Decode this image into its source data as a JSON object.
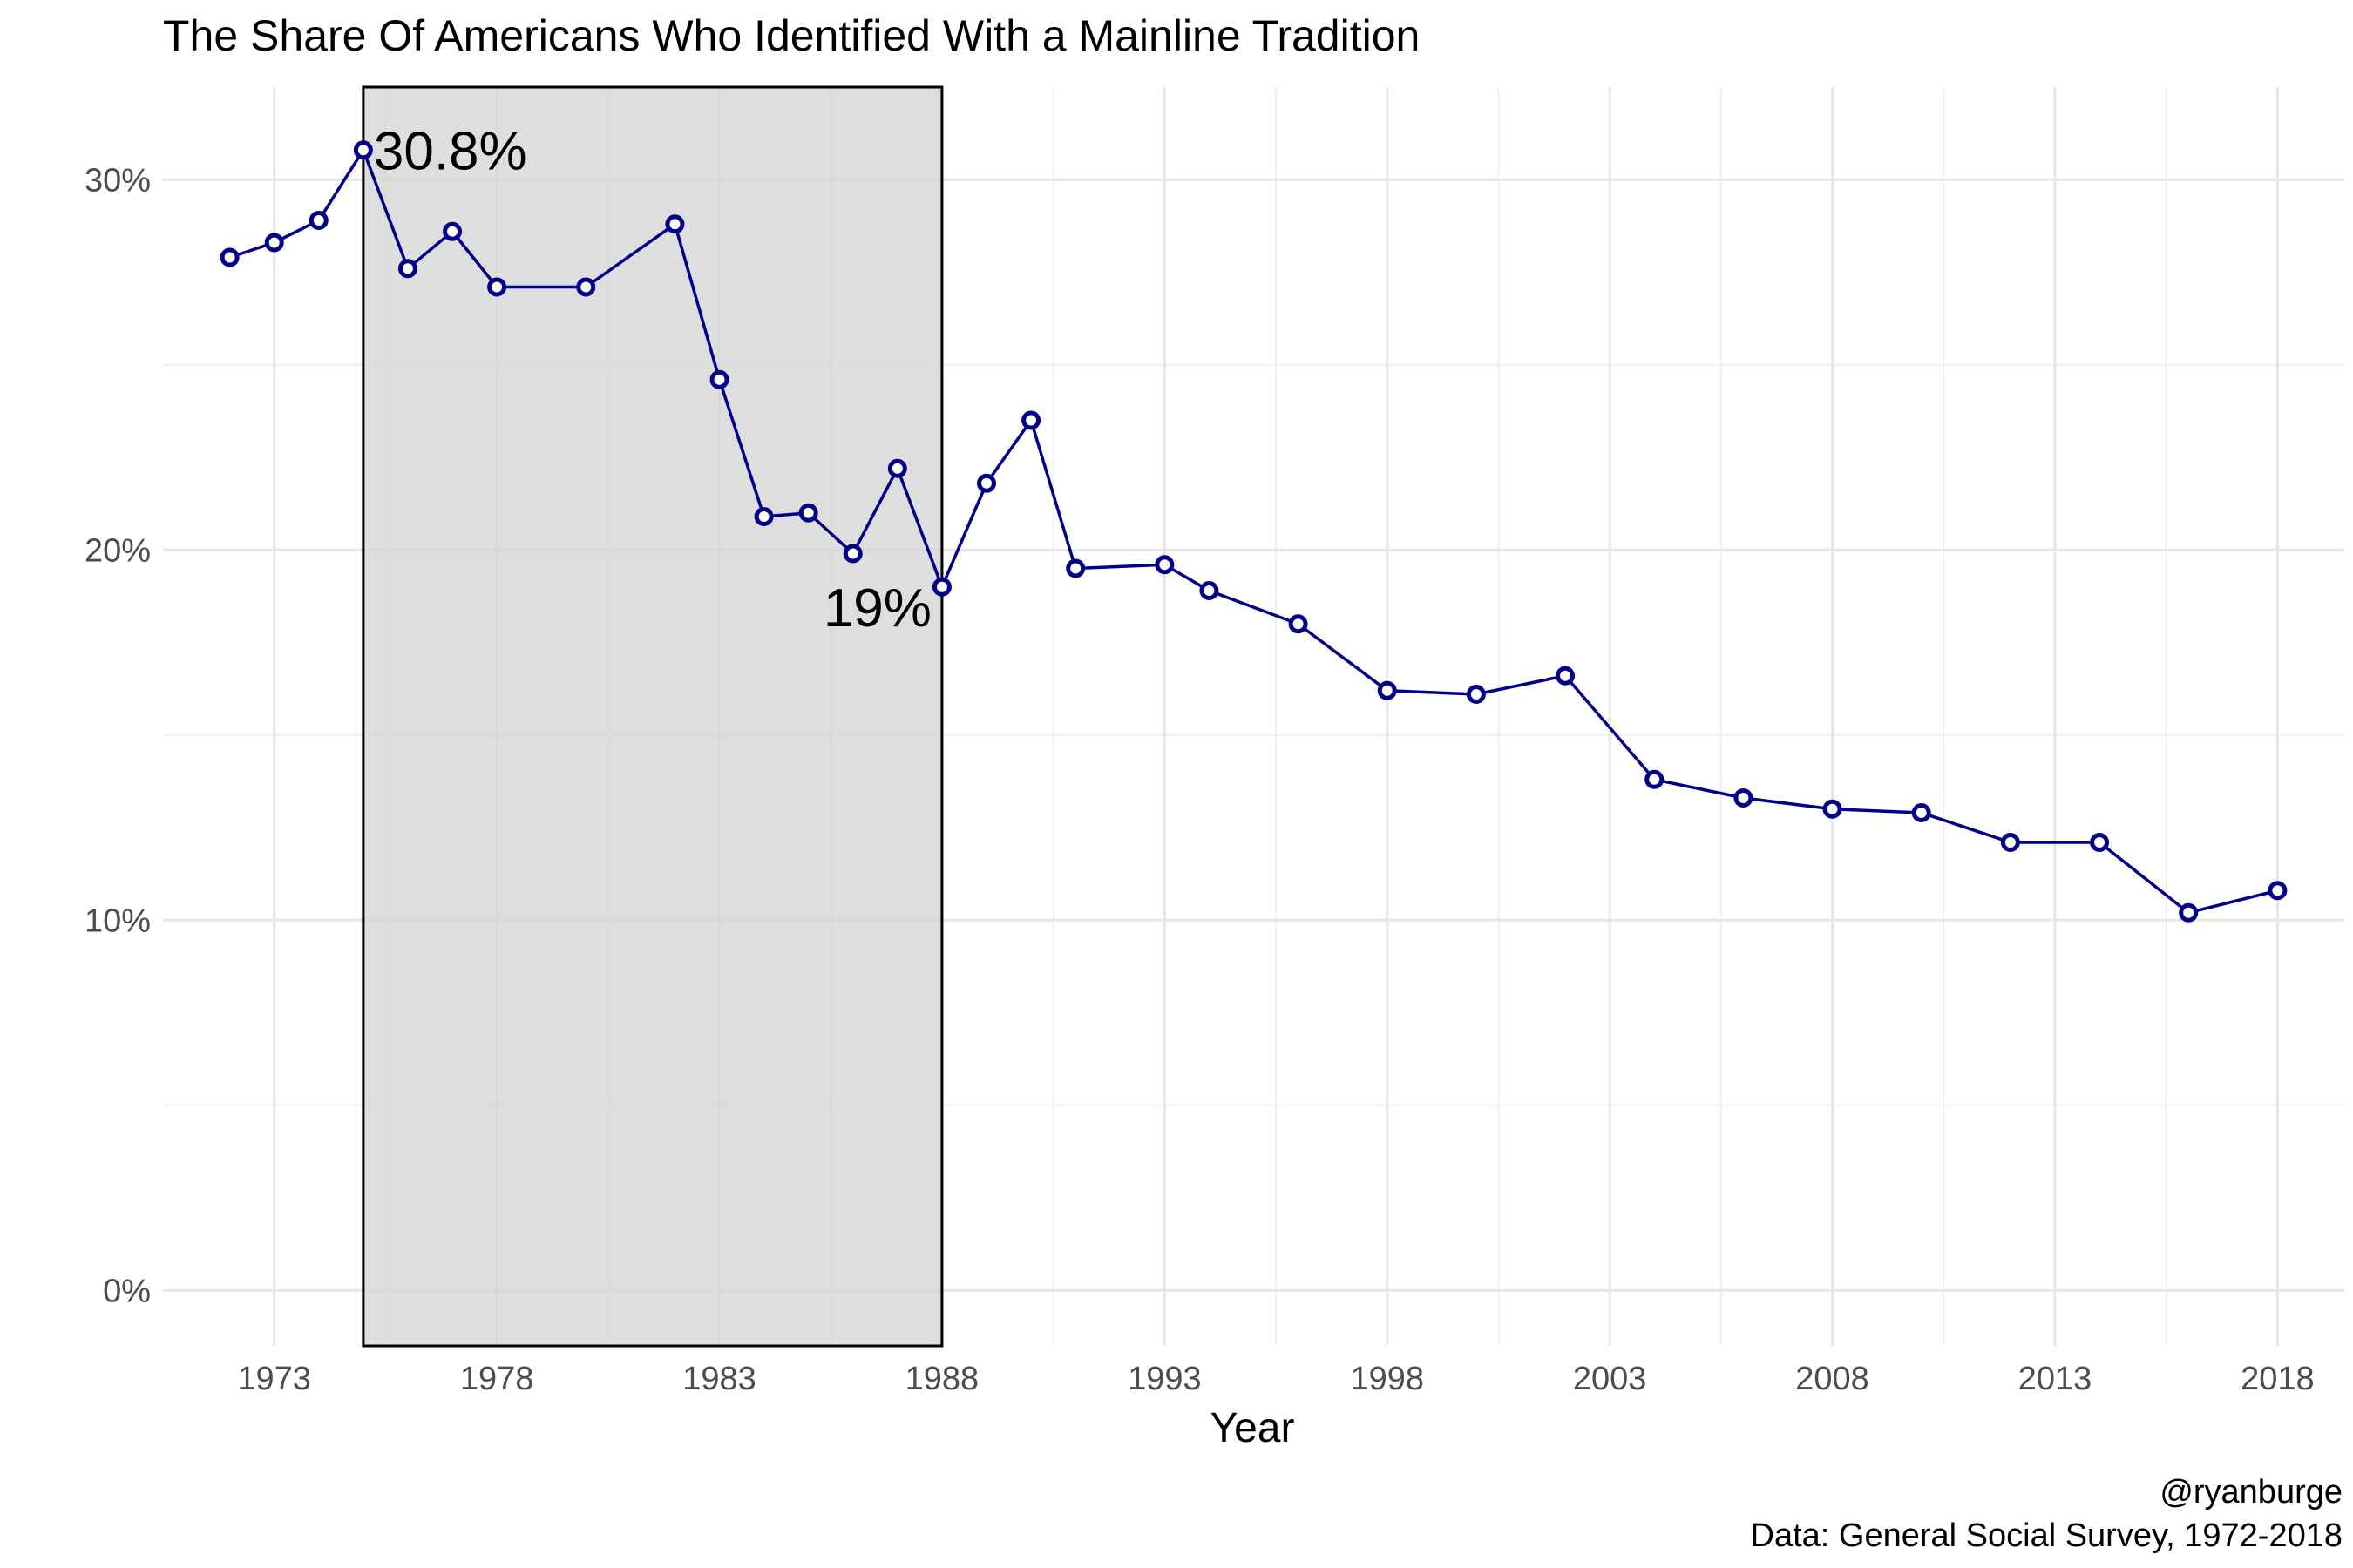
{
  "chart_data": {
    "type": "line",
    "title": "The Share Of Americans Who Identified With a Mainline Tradition",
    "xlabel": "Year",
    "ylabel": "",
    "x_ticks": [
      "1973",
      "1978",
      "1983",
      "1988",
      "1993",
      "1998",
      "2003",
      "2008",
      "2013",
      "2018"
    ],
    "y_ticks": [
      "0%",
      "10%",
      "20%",
      "30%"
    ],
    "xlim": [
      1970.5,
      2019.5
    ],
    "ylim": [
      -1.5,
      32.5
    ],
    "grid": true,
    "legend": "none",
    "series_color": "#00008b",
    "shaded_region": {
      "x_start": 1975,
      "x_end": 1988
    },
    "annotations": [
      {
        "text": "30.8%",
        "x": 1975,
        "y": 30.8
      },
      {
        "text": "19%",
        "x": 1988,
        "y": 19.0
      }
    ],
    "x": [
      1972,
      1973,
      1974,
      1975,
      1976,
      1977,
      1978,
      1980,
      1982,
      1983,
      1984,
      1985,
      1986,
      1987,
      1988,
      1989,
      1990,
      1991,
      1993,
      1994,
      1996,
      1998,
      2000,
      2002,
      2004,
      2006,
      2008,
      2010,
      2012,
      2014,
      2016,
      2018
    ],
    "values": [
      27.9,
      28.3,
      28.9,
      30.8,
      27.6,
      28.6,
      27.1,
      27.1,
      28.8,
      24.6,
      20.9,
      21.0,
      19.9,
      22.2,
      19.0,
      21.8,
      23.5,
      19.5,
      19.6,
      18.9,
      18.0,
      16.2,
      16.1,
      16.6,
      13.8,
      13.3,
      13.0,
      12.9,
      12.1,
      12.1,
      10.2,
      10.8
    ]
  },
  "caption": {
    "line1": "@ryanburge",
    "line2": "Data: General Social Survey, 1972-2018"
  }
}
